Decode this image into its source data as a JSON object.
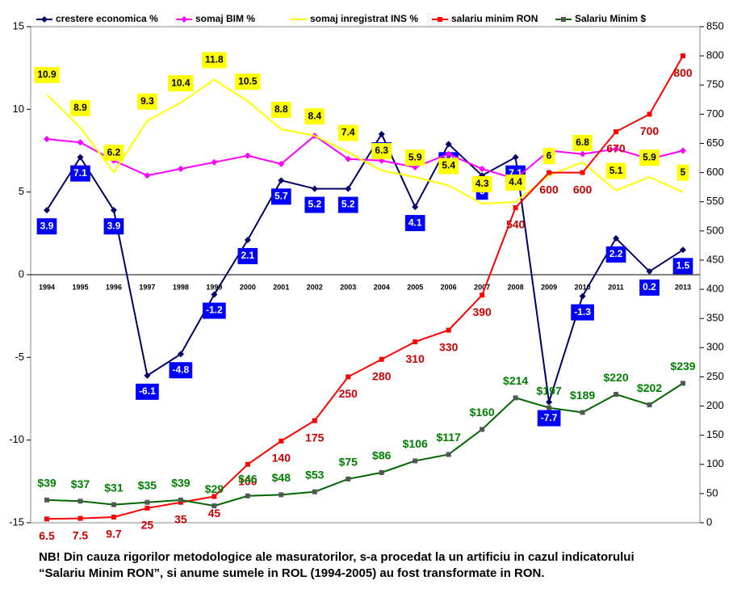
{
  "chart_data": {
    "type": "line",
    "categories": [
      "1994",
      "1995",
      "1996",
      "1997",
      "1998",
      "1999",
      "2000",
      "2001",
      "2002",
      "2003",
      "2004",
      "2005",
      "2006",
      "2007",
      "2008",
      "2009",
      "2010",
      "2011",
      "2012",
      "2013"
    ],
    "ylim": [
      -15,
      15
    ],
    "yticks": [
      -15,
      -10,
      -5,
      0,
      5,
      10,
      15
    ],
    "y2lim": [
      0,
      850
    ],
    "y2ticks": [
      0,
      50,
      100,
      150,
      200,
      250,
      300,
      350,
      400,
      450,
      500,
      550,
      600,
      650,
      700,
      750,
      800,
      850
    ],
    "series": [
      {
        "name": "crestere economica %",
        "color": "#000066",
        "values": [
          3.9,
          7.1,
          3.9,
          -6.1,
          -4.8,
          -1.2,
          2.1,
          5.7,
          5.2,
          5.2,
          8.5,
          4.1,
          7.9,
          6,
          7.1,
          -7.7,
          -1.3,
          2.2,
          0.2,
          1.5
        ]
      },
      {
        "name": "somaj BIM %",
        "color": "#ff00ff",
        "values": [
          8.2,
          8.0,
          6.9,
          6.0,
          6.4,
          6.8,
          7.2,
          6.7,
          8.4,
          7.0,
          6.9,
          6.5,
          7.3,
          6.4,
          5.8,
          7.5,
          7.3,
          7.6,
          7.0,
          7.5
        ]
      },
      {
        "name": "somaj inregistrat INS %",
        "color": "#ffff00",
        "values": [
          10.9,
          8.9,
          6.2,
          9.3,
          10.4,
          11.8,
          10.5,
          8.8,
          8.4,
          7.4,
          6.3,
          5.9,
          5.4,
          4.3,
          4.4,
          6,
          6.8,
          5.1,
          5.9,
          5
        ]
      },
      {
        "name": "salariu minim RON",
        "color": "#ff0000",
        "axis": "y2",
        "values": [
          6.5,
          7.5,
          9.7,
          25,
          35,
          45,
          100,
          140,
          175,
          250,
          280,
          310,
          330,
          390,
          540,
          600,
          600,
          670,
          700,
          800
        ]
      },
      {
        "name": "Salariu Minim $",
        "color": "#006600",
        "axis": "y2",
        "values": [
          39,
          37,
          31,
          35,
          39,
          29,
          46,
          48,
          53,
          75,
          86,
          106,
          117,
          160,
          214,
          197,
          189,
          220,
          202,
          239
        ],
        "value_labels": [
          "$39",
          "$37",
          "$31",
          "$35",
          "$39",
          "$29",
          "$46",
          "$48",
          "$53",
          "$75",
          "$86",
          "$106",
          "$117",
          "$160",
          "$214",
          "$197",
          "$189",
          "$220",
          "$202",
          "$239"
        ]
      }
    ],
    "notes": [
      "NB! Din cauza rigorilor metodologice ale masuratorilor, s-a procedat la un artificiu in cazul indicatorului",
      "“Salariu Minim RON”, si anume sumele in ROL (1994-2005) au fost transformate in RON."
    ]
  }
}
